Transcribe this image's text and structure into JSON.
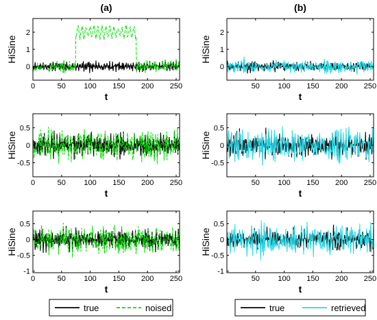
{
  "figure": {
    "columns": [
      {
        "title": "(a)",
        "overlay_color": "#00dd00",
        "overlay_dashed": true
      },
      {
        "title": "(b)",
        "overlay_color": "#22d8e8",
        "overlay_dashed": false
      }
    ],
    "legends": [
      {
        "entries": [
          {
            "label": "true",
            "color": "#000000",
            "dashed": false
          },
          {
            "label": "noised",
            "color": "#00dd00",
            "dashed": true
          }
        ]
      },
      {
        "entries": [
          {
            "label": "true",
            "color": "#000000",
            "dashed": false
          },
          {
            "label": "retrieved",
            "color": "#22d8e8",
            "dashed": false
          }
        ]
      }
    ]
  },
  "chart_data": [
    {
      "type": "line",
      "panel": "(a) row 1",
      "xlabel": "t",
      "ylabel": "HiSine",
      "xlim": [
        0,
        256
      ],
      "ylim": [
        -0.8,
        2.8
      ],
      "xticks": [
        0,
        50,
        100,
        150,
        200,
        250
      ],
      "yticks": [
        0,
        1,
        2
      ],
      "series": [
        {
          "name": "true",
          "amplitude": 0.5
        },
        {
          "name": "noised",
          "amplitude": 0.5,
          "offset_segment": {
            "from": 75,
            "to": 180,
            "shift": 2.0
          }
        }
      ]
    },
    {
      "type": "line",
      "panel": "(b) row 1",
      "xlabel": "t",
      "ylabel": "HiSine",
      "xlim": [
        0,
        256
      ],
      "ylim": [
        -0.8,
        2.8
      ],
      "xticks": [
        50,
        100,
        150,
        200,
        250
      ],
      "yticks": [
        0,
        1,
        2
      ],
      "series": [
        {
          "name": "true",
          "amplitude": 0.5
        },
        {
          "name": "retrieved",
          "amplitude": 0.6
        }
      ]
    },
    {
      "type": "line",
      "panel": "(a) row 2",
      "xlabel": "t",
      "ylabel": "HiSine",
      "xlim": [
        0,
        256
      ],
      "ylim": [
        -0.9,
        0.9
      ],
      "xticks": [
        0,
        50,
        100,
        150,
        200,
        250
      ],
      "yticks": [
        -0.5,
        0,
        0.5
      ],
      "series": [
        {
          "name": "true",
          "amplitude": 0.6
        },
        {
          "name": "noised",
          "amplitude": 0.7
        }
      ]
    },
    {
      "type": "line",
      "panel": "(b) row 2",
      "xlabel": "t",
      "ylabel": "HiSine",
      "xlim": [
        0,
        256
      ],
      "ylim": [
        -0.9,
        0.9
      ],
      "xticks": [
        50,
        100,
        150,
        200,
        250
      ],
      "yticks": [
        -0.5,
        0,
        0.5
      ],
      "series": [
        {
          "name": "true",
          "amplitude": 0.6
        },
        {
          "name": "retrieved",
          "amplitude": 0.7
        }
      ]
    },
    {
      "type": "line",
      "panel": "(a) row 3",
      "xlabel": "t",
      "ylabel": "HiSine",
      "xlim": [
        0,
        256
      ],
      "ylim": [
        -1.05,
        0.9
      ],
      "xticks": [
        0,
        50,
        100,
        150,
        200,
        250
      ],
      "yticks": [
        -1,
        -0.5,
        0,
        0.5
      ],
      "series": [
        {
          "name": "true",
          "amplitude": 0.55
        },
        {
          "name": "noised",
          "amplitude": 0.7
        }
      ]
    },
    {
      "type": "line",
      "panel": "(b) row 3",
      "xlabel": "t",
      "ylabel": "HiSine",
      "xlim": [
        0,
        256
      ],
      "ylim": [
        -1.05,
        0.9
      ],
      "xticks": [
        50,
        100,
        150,
        200,
        250
      ],
      "yticks": [
        -1,
        -0.5,
        0,
        0.5
      ],
      "series": [
        {
          "name": "true",
          "amplitude": 0.55
        },
        {
          "name": "retrieved",
          "amplitude": 0.75
        }
      ]
    }
  ]
}
